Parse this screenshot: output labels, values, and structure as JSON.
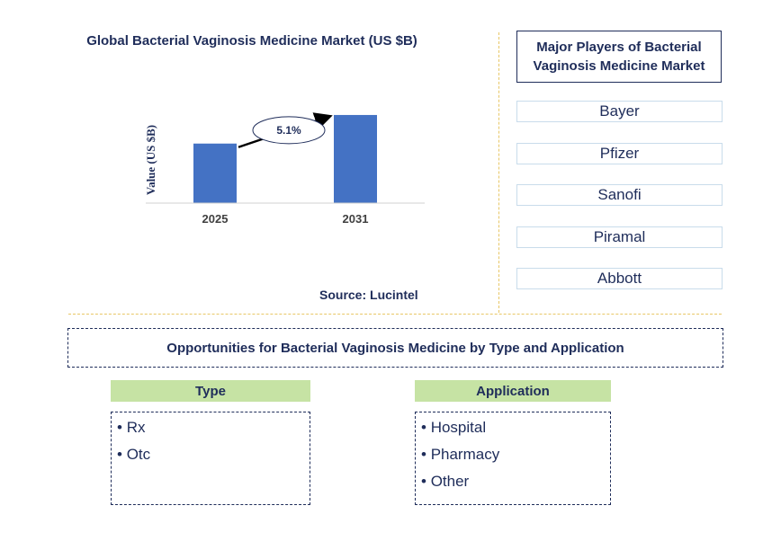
{
  "chart_data": {
    "type": "bar",
    "title": "Global Bacterial Vaginosis Medicine Market (US $B)",
    "ylabel": "Value (US $B)",
    "categories": [
      "2025",
      "2031"
    ],
    "values": [
      1.0,
      1.48
    ],
    "ylim": [
      0,
      1.6
    ],
    "grid": false,
    "bar_color": "#4472c4",
    "annotation": "5.1%"
  },
  "source": "Source: Lucintel",
  "players": {
    "title": "Major Players of Bacterial Vaginosis Medicine Market",
    "items": [
      "Bayer",
      "Pfizer",
      "Sanofi",
      "Piramal",
      "Abbott"
    ]
  },
  "opportunities": {
    "title": "Opportunities for Bacterial Vaginosis Medicine by Type and Application",
    "type": {
      "header": "Type",
      "items": [
        "Rx",
        "Otc"
      ]
    },
    "application": {
      "header": "Application",
      "items": [
        "Hospital",
        "Pharmacy",
        "Other"
      ]
    }
  }
}
